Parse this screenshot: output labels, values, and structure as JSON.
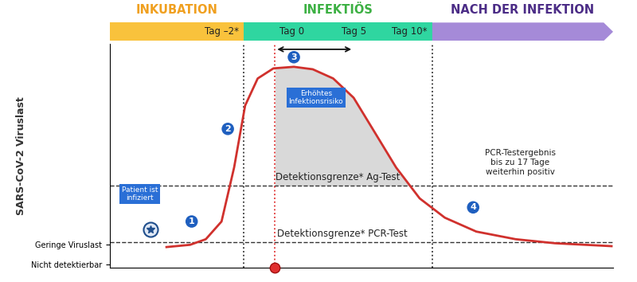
{
  "chart_data": {
    "type": "line",
    "y_label": "SARS-CoV-2 Viruslast",
    "xlim": [
      -10.5,
      21.5
    ],
    "ylim": [
      0,
      100
    ],
    "yticks": [
      {
        "value": 1.7,
        "label": "Nicht detektierbar"
      },
      {
        "value": 10.3,
        "label": "Geringe Viruslast"
      }
    ],
    "tick_labels": "y",
    "x": [
      -6.9,
      -5.4,
      -4.4,
      -3.4,
      -2.6,
      -1.9,
      -1.1,
      -0.1,
      1.2,
      2.4,
      3.7,
      5.0,
      6.2,
      7.7,
      9.2,
      10.8,
      12.8,
      15.3,
      17.8,
      21.4
    ],
    "series": [
      {
        "color": "#d0312d",
        "values": [
          9.3,
          10.3,
          12.8,
          20.7,
          44.8,
          72.4,
          84.5,
          89.0,
          89.7,
          88.6,
          84.5,
          75.9,
          62.1,
          44.8,
          31.0,
          22.4,
          16.2,
          12.8,
          11.0,
          9.7
        ]
      }
    ],
    "phases": [
      {
        "label": "INKUBATION",
        "start": -10.5,
        "end": -2,
        "color": "#f9c23c",
        "text_color": "#f0a020"
      },
      {
        "label": "INFEKTIÖS",
        "start": -2,
        "end": 10,
        "color": "#2fd6a0",
        "text_color": "#3cb043"
      },
      {
        "label": "NACH DER INFEKTION",
        "start": 10,
        "end": 21.5,
        "color": "#a58ad8",
        "text_color": "#4b2c86"
      }
    ],
    "days": [
      {
        "value": -2,
        "label": "Tag –2*"
      },
      {
        "value": 0,
        "label": "Tag 0"
      },
      {
        "value": 5,
        "label": "Tag 5"
      },
      {
        "value": 10,
        "label": "Tag 10*"
      }
    ],
    "vlines": [
      {
        "x": -2,
        "color": "#333333"
      },
      {
        "x": 0,
        "color": "#e03030",
        "marker": "o"
      },
      {
        "x": 10,
        "color": "#333333"
      }
    ],
    "period": [
      0,
      5
    ],
    "limits": [
      {
        "label": "Detektionsgrenze* Ag-Test",
        "value": 36.6
      },
      {
        "label": "Detektionsgrenze* PCR-Test",
        "value": 11.4
      }
    ],
    "steps": [
      "1",
      "2",
      "3",
      "4"
    ],
    "boxes": [
      "Patient ist\ninfiziert",
      "Erhöhtes\nInfektionsrisiko"
    ],
    "risk_fill_color": "#d9d9d9",
    "note": "PCR-Testergebnis\nbis zu 17 Tage\nweiterhin positiv"
  }
}
